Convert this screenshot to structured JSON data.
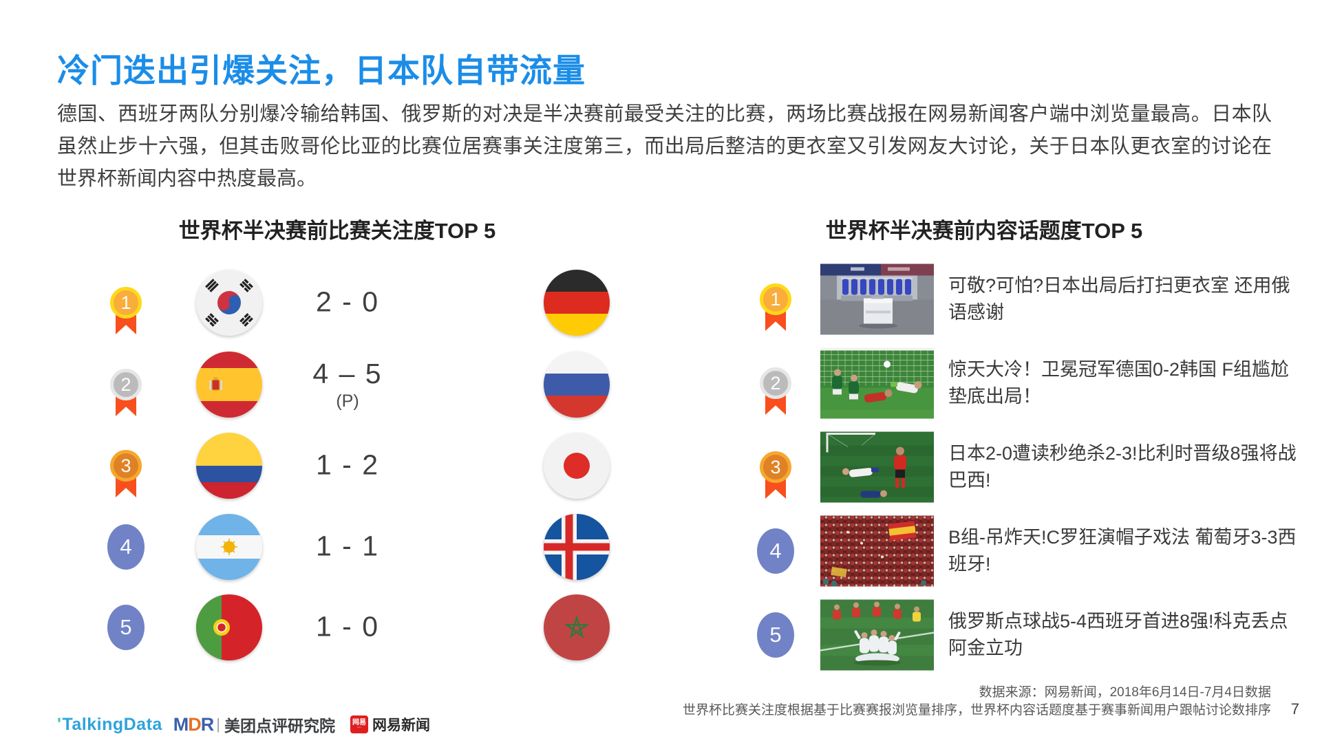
{
  "title": "冷门迭出引爆关注，日本队自带流量",
  "intro": "德国、西班牙两队分别爆冷输给韩国、俄罗斯的对决是半决赛前最受关注的比赛，两场比赛战报在网易新闻客户端中浏览量最高。日本队虽然止步十六强，但其击败哥伦比亚的比赛位居赛事关注度第三，而出局后整洁的更衣室又引发网友大讨论，关于日本队更衣室的讨论在世界杯新闻内容中热度最高。",
  "left_section": {
    "header": "世界杯半决赛前比赛关注度TOP 5",
    "rows": [
      {
        "rank": "1",
        "medal": "gold",
        "team1_flag": "south-korea",
        "score": "2 - 0",
        "note": "",
        "team2_flag": "germany"
      },
      {
        "rank": "2",
        "medal": "silver",
        "team1_flag": "spain",
        "score": "4 – 5",
        "note": "(P)",
        "team2_flag": "russia"
      },
      {
        "rank": "3",
        "medal": "bronze",
        "team1_flag": "colombia",
        "score": "1 - 2",
        "note": "",
        "team2_flag": "japan"
      },
      {
        "rank": "4",
        "medal": "plain",
        "team1_flag": "argentina",
        "score": "1 - 1",
        "note": "",
        "team2_flag": "iceland"
      },
      {
        "rank": "5",
        "medal": "plain",
        "team1_flag": "portugal",
        "score": "1 - 0",
        "note": "",
        "team2_flag": "morocco"
      }
    ]
  },
  "right_section": {
    "header": "世界杯半决赛前内容话题度TOP 5",
    "rows": [
      {
        "rank": "1",
        "medal": "gold",
        "thumbnail": "locker-room",
        "headline": "可敬?可怕?日本出局后打扫更衣室 还用俄语感谢"
      },
      {
        "rank": "2",
        "medal": "silver",
        "thumbnail": "germany-korea-goal",
        "headline": "惊天大冷！卫冕冠军德国0-2韩国 F组尴尬垫底出局！"
      },
      {
        "rank": "3",
        "medal": "bronze",
        "thumbnail": "japan-belgium",
        "headline": "日本2-0遭读秒绝杀2-3!比利时晋级8强将战巴西!"
      },
      {
        "rank": "4",
        "medal": "plain",
        "thumbnail": "spain-fans",
        "headline": "B组-吊炸天!C罗狂演帽子戏法 葡萄牙3-3西班牙!"
      },
      {
        "rank": "5",
        "medal": "plain",
        "thumbnail": "russia-celebration",
        "headline": "俄罗斯点球战5-4西班牙首进8强!科克丢点阿金立功"
      }
    ]
  },
  "footer": {
    "source_line": "数据来源：网易新闻，2018年6月14日-7月4日数据",
    "method_line": "世界杯比赛关注度根据基于比赛赛报浏览量排序，世界杯内容话题度基于赛事新闻用户跟帖讨论数排序",
    "page_number": "7"
  },
  "logos": {
    "talkingdata": "TalkingData",
    "mdr": "MDR",
    "meituan": "美团点评研究院",
    "netease_icon": "网易",
    "netease": "网易新闻"
  },
  "colors": {
    "accent_blue": "#1b8de8",
    "medal_gold_ring": "#ffd918",
    "medal_gold_fill": "#f8ad3c",
    "medal_silver_ring": "#e6e6e6",
    "medal_silver_fill": "#bbbbbb",
    "medal_bronze_ring": "#f6a72f",
    "medal_bronze_fill": "#df8226",
    "ribbon_orange": "#f94e1d",
    "rank_blue": "#7183c6",
    "talkingdata_blue": "#2ea3dc",
    "netease_red": "#df1f1f"
  }
}
